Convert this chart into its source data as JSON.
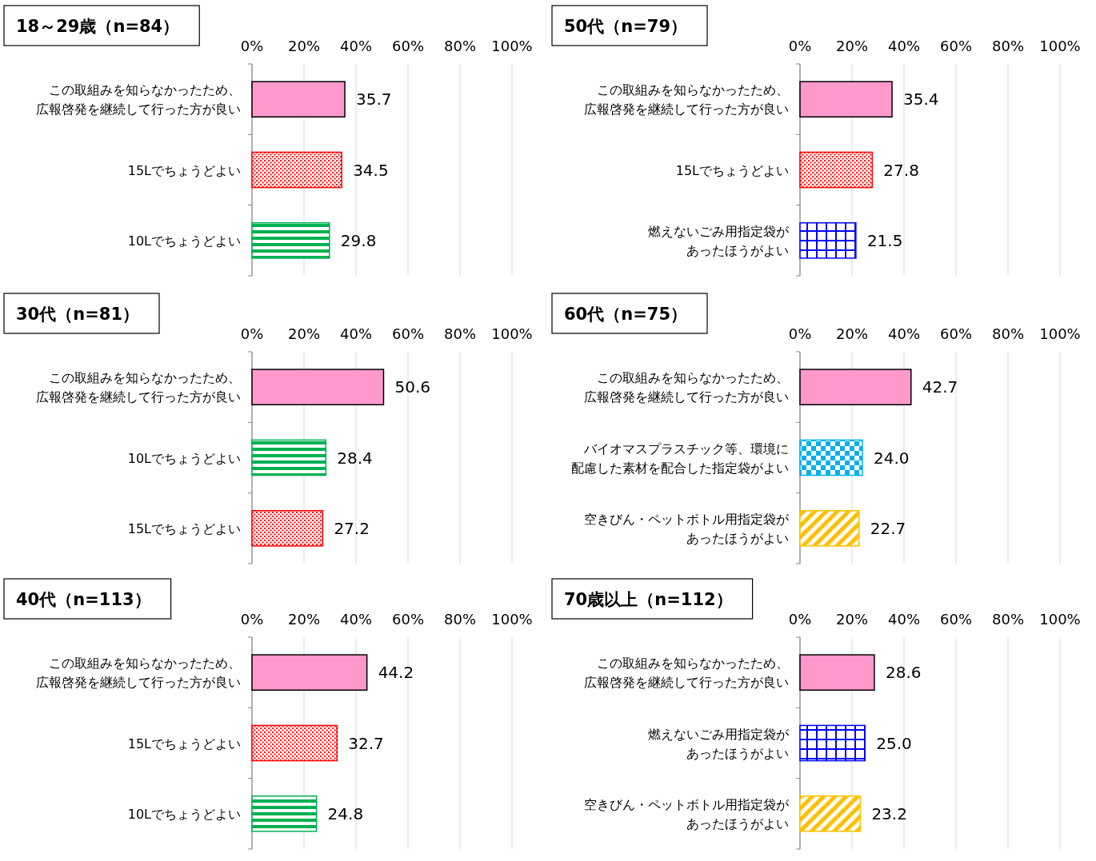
{
  "chart_data": [
    {
      "type": "bar",
      "orientation": "horizontal",
      "title": "18～29歳（n=84）",
      "categories": [
        "この取組みを知らなかったため、広報啓発を継続して行った方が良い",
        "15Lでちょうどよい",
        "10Lでちょうどよい"
      ],
      "values": [
        35.7,
        34.5,
        29.8
      ],
      "value_labels": [
        "35.7",
        "34.5",
        "29.8"
      ],
      "colors": [
        "#ff99cc",
        "#ff0000",
        "#00b050"
      ],
      "xlim": [
        0,
        100
      ],
      "xticks": [
        {
          "value": 0,
          "label": "0%"
        },
        {
          "value": 20,
          "label": "20%"
        },
        {
          "value": 40,
          "label": "40%"
        },
        {
          "value": 60,
          "label": "60%"
        },
        {
          "value": 80,
          "label": "80%"
        },
        {
          "value": 100,
          "label": "100%"
        }
      ],
      "grid": "x"
    },
    {
      "type": "bar",
      "orientation": "horizontal",
      "title": "50代（n=79）",
      "categories": [
        "この取組みを知らなかったため、広報啓発を継続して行った方が良い",
        "15Lでちょうどよい",
        "燃えないごみ用指定袋があったほうがよい"
      ],
      "values": [
        35.4,
        27.8,
        21.5
      ],
      "value_labels": [
        "35.4",
        "27.8",
        "21.5"
      ],
      "colors": [
        "#ff99cc",
        "#ff0000",
        "#0000ff"
      ],
      "xlim": [
        0,
        100
      ],
      "xticks": [
        {
          "value": 0,
          "label": "0%"
        },
        {
          "value": 20,
          "label": "20%"
        },
        {
          "value": 40,
          "label": "40%"
        },
        {
          "value": 60,
          "label": "60%"
        },
        {
          "value": 80,
          "label": "80%"
        },
        {
          "value": 100,
          "label": "100%"
        }
      ],
      "grid": "x"
    },
    {
      "type": "bar",
      "orientation": "horizontal",
      "title": "30代（n=81）",
      "categories": [
        "この取組みを知らなかったため、広報啓発を継続して行った方が良い",
        "10Lでちょうどよい",
        "15Lでちょうどよい"
      ],
      "values": [
        50.6,
        28.4,
        27.2
      ],
      "value_labels": [
        "50.6",
        "28.4",
        "27.2"
      ],
      "colors": [
        "#ff99cc",
        "#00b050",
        "#ff0000"
      ],
      "xlim": [
        0,
        100
      ],
      "xticks": [
        {
          "value": 0,
          "label": "0%"
        },
        {
          "value": 20,
          "label": "20%"
        },
        {
          "value": 40,
          "label": "40%"
        },
        {
          "value": 60,
          "label": "60%"
        },
        {
          "value": 80,
          "label": "80%"
        },
        {
          "value": 100,
          "label": "100%"
        }
      ],
      "grid": "x"
    },
    {
      "type": "bar",
      "orientation": "horizontal",
      "title": "60代（n=75）",
      "categories": [
        "この取組みを知らなかったため、広報啓発を継続して行った方が良い",
        "バイオマスプラスチック等、環境に配慮した素材を配合した指定袋がよい",
        "空きびん・ペットボトル用指定袋があったほうがよい"
      ],
      "values": [
        42.7,
        24.0,
        22.7
      ],
      "value_labels": [
        "42.7",
        "24.0",
        "22.7"
      ],
      "colors": [
        "#ff99cc",
        "#00b0f0",
        "#ffc000"
      ],
      "xlim": [
        0,
        100
      ],
      "xticks": [
        {
          "value": 0,
          "label": "0%"
        },
        {
          "value": 20,
          "label": "20%"
        },
        {
          "value": 40,
          "label": "40%"
        },
        {
          "value": 60,
          "label": "60%"
        },
        {
          "value": 80,
          "label": "80%"
        },
        {
          "value": 100,
          "label": "100%"
        }
      ],
      "grid": "x"
    },
    {
      "type": "bar",
      "orientation": "horizontal",
      "title": "40代（n=113）",
      "categories": [
        "この取組みを知らなかったため、広報啓発を継続して行った方が良い",
        "15Lでちょうどよい",
        "10Lでちょうどよい"
      ],
      "values": [
        44.2,
        32.7,
        24.8
      ],
      "value_labels": [
        "44.2",
        "32.7",
        "24.8"
      ],
      "colors": [
        "#ff99cc",
        "#ff0000",
        "#00b050"
      ],
      "xlim": [
        0,
        100
      ],
      "xticks": [
        {
          "value": 0,
          "label": "0%"
        },
        {
          "value": 20,
          "label": "20%"
        },
        {
          "value": 40,
          "label": "40%"
        },
        {
          "value": 60,
          "label": "60%"
        },
        {
          "value": 80,
          "label": "80%"
        },
        {
          "value": 100,
          "label": "100%"
        }
      ],
      "grid": "x"
    },
    {
      "type": "bar",
      "orientation": "horizontal",
      "title": "70歳以上（n=112）",
      "categories": [
        "この取組みを知らなかったため、広報啓発を継続して行った方が良い",
        "燃えないごみ用指定袋があったほうがよい",
        "空きびん・ペットボトル用指定袋があったほうがよい"
      ],
      "values": [
        28.6,
        25.0,
        23.2
      ],
      "value_labels": [
        "28.6",
        "25.0",
        "23.2"
      ],
      "colors": [
        "#ff99cc",
        "#0000ff",
        "#ffc000"
      ],
      "xlim": [
        0,
        100
      ],
      "xticks": [
        {
          "value": 0,
          "label": "0%"
        },
        {
          "value": 20,
          "label": "20%"
        },
        {
          "value": 40,
          "label": "40%"
        },
        {
          "value": 60,
          "label": "60%"
        },
        {
          "value": 80,
          "label": "80%"
        },
        {
          "value": 100,
          "label": "100%"
        }
      ],
      "grid": "x"
    }
  ]
}
